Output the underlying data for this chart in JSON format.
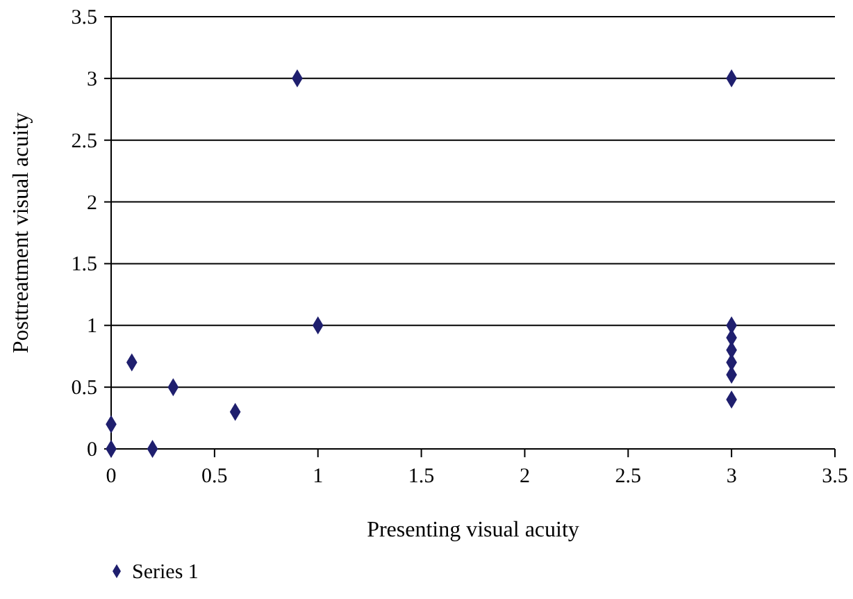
{
  "chart_data": {
    "type": "scatter",
    "xlabel": "Presenting visual acuity",
    "ylabel": "Posttreatment visual acuity",
    "xlim": [
      0,
      3.5
    ],
    "ylim": [
      0,
      3.5
    ],
    "xticks": [
      0,
      0.5,
      1,
      1.5,
      2,
      2.5,
      3,
      3.5
    ],
    "yticks": [
      0,
      0.5,
      1,
      1.5,
      2,
      2.5,
      3,
      3.5
    ],
    "grid": "y",
    "legend": "bottom left",
    "marker": "diamond",
    "x": [
      0,
      0,
      0.1,
      0.2,
      0.3,
      0.6,
      0.9,
      1,
      3,
      3,
      3,
      3,
      3,
      3,
      3
    ],
    "series": [
      {
        "name": "Series 1",
        "color": "#1f1f6e",
        "values": [
          0,
          0.2,
          0.7,
          0,
          0.5,
          0.3,
          3,
          1,
          3,
          1,
          0.9,
          0.8,
          0.7,
          0.6,
          0.4
        ]
      }
    ]
  }
}
